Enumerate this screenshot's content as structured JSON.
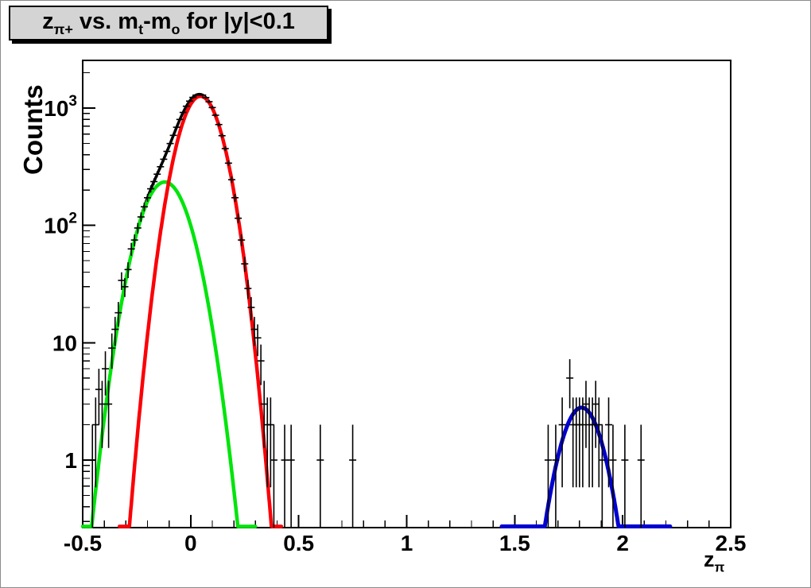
{
  "window": {
    "background": "#ffffff",
    "border_color": "#8c8c8c"
  },
  "title_box": {
    "fill": "#d4d4d4",
    "border_color": "#000000",
    "shadow_color": "#000000",
    "parts": [
      {
        "text": "z"
      },
      {
        "text": "π+",
        "style": "sub"
      },
      {
        "text": " vs. m"
      },
      {
        "text": "t",
        "style": "sub"
      },
      {
        "text": "-m"
      },
      {
        "text": "o",
        "style": "sub"
      },
      {
        "text": " for |y|<0.1"
      }
    ]
  },
  "chart_data": {
    "type": "histogram-with-fits",
    "title_plain": "z_{pi+} vs. m_t-m_o for |y|<0.1",
    "ylabel": "Counts",
    "xlabel_parts": [
      {
        "text": "z"
      },
      {
        "text": "π",
        "style": "sub"
      }
    ],
    "grid": false,
    "legend": null,
    "x_axis": {
      "min": -0.5,
      "max": 2.5,
      "major_ticks": [
        -0.5,
        0,
        0.5,
        1,
        1.5,
        2,
        2.5
      ],
      "major_labels": [
        "-0.5",
        "0",
        "0.5",
        "1",
        "1.5",
        "2",
        "2.5"
      ],
      "minor_step": 0.1
    },
    "y_axis": {
      "scale": "log",
      "min": 0.2657,
      "max": 2546,
      "major_ticks": [
        1,
        10,
        100,
        1000
      ],
      "major_labels": [
        {
          "base": "1",
          "exp": ""
        },
        {
          "base": "10",
          "exp": ""
        },
        {
          "base": "10",
          "exp": "2"
        },
        {
          "base": "10",
          "exp": "3"
        }
      ]
    },
    "fit_curves": [
      {
        "name": "total-fit",
        "color": "#000000",
        "line_width": 3.5,
        "x_range": [
          -0.462,
          0.387
        ],
        "gaussians": [
          {
            "amp": 234,
            "mean": -0.12,
            "sigma": 0.092
          },
          {
            "amp": 1260,
            "mean": 0.045,
            "sigma": 0.08
          }
        ]
      },
      {
        "name": "background-gaussian",
        "color": "#00e40c",
        "line_width": 4.5,
        "x_range": [
          -0.5,
          0.3
        ],
        "gaussians": [
          {
            "amp": 234,
            "mean": -0.12,
            "sigma": 0.092
          }
        ]
      },
      {
        "name": "signal-gaussian",
        "color": "#fb0007",
        "line_width": 4.5,
        "x_range": [
          -0.33,
          0.42
        ],
        "gaussians": [
          {
            "amp": 1260,
            "mean": 0.045,
            "sigma": 0.08
          }
        ]
      },
      {
        "name": "secondary-peak-gaussian",
        "color": "#0000d0",
        "line_width": 5,
        "x_range": [
          1.44,
          2.22
        ],
        "gaussians": [
          {
            "amp": 2.8,
            "mean": 1.81,
            "sigma": 0.079
          }
        ]
      }
    ],
    "data_points": {
      "marker": "cross",
      "color": "#000000",
      "error_mode": "sqrt",
      "main_peak": [
        [
          -0.455,
          1
        ],
        [
          -0.44,
          2
        ],
        [
          -0.425,
          4
        ],
        [
          -0.41,
          3
        ],
        [
          -0.395,
          6
        ],
        [
          -0.38,
          3
        ],
        [
          -0.365,
          9
        ],
        [
          -0.35,
          13
        ],
        [
          -0.335,
          18
        ],
        [
          -0.32,
          34
        ],
        [
          -0.305,
          30
        ],
        [
          -0.29,
          42
        ],
        [
          -0.275,
          63
        ],
        [
          -0.26,
          75
        ],
        [
          -0.245,
          95
        ],
        [
          -0.23,
          118
        ],
        [
          -0.215,
          144
        ],
        [
          -0.2,
          172
        ],
        [
          -0.185,
          205
        ],
        [
          -0.17,
          236
        ],
        [
          -0.155,
          273
        ],
        [
          -0.14,
          316
        ],
        [
          -0.125,
          366
        ],
        [
          -0.11,
          427
        ],
        [
          -0.095,
          498
        ],
        [
          -0.08,
          585
        ],
        [
          -0.065,
          686
        ],
        [
          -0.05,
          799
        ],
        [
          -0.035,
          917
        ],
        [
          -0.02,
          1036
        ],
        [
          -0.005,
          1145
        ],
        [
          0.01,
          1232
        ],
        [
          0.025,
          1289
        ],
        [
          0.04,
          1310
        ],
        [
          0.055,
          1289
        ],
        [
          0.07,
          1228
        ],
        [
          0.085,
          1132
        ],
        [
          0.1,
          1009
        ],
        [
          0.115,
          868
        ],
        [
          0.13,
          723
        ],
        [
          0.145,
          581
        ],
        [
          0.16,
          451
        ],
        [
          0.175,
          339
        ],
        [
          0.19,
          245
        ],
        [
          0.205,
          172
        ],
        [
          0.22,
          115
        ],
        [
          0.235,
          75
        ],
        [
          0.25,
          47
        ],
        [
          0.265,
          29
        ],
        [
          0.28,
          20
        ],
        [
          0.295,
          13
        ],
        [
          0.31,
          11
        ],
        [
          0.325,
          7
        ],
        [
          0.34,
          3
        ],
        [
          0.355,
          2
        ],
        [
          0.37,
          2
        ],
        [
          0.385,
          1
        ]
      ],
      "scattered": [
        [
          0.435,
          1
        ],
        [
          0.465,
          1
        ],
        [
          0.6,
          1
        ],
        [
          0.75,
          1
        ]
      ],
      "secondary_cluster": [
        [
          1.655,
          1
        ],
        [
          1.69,
          1
        ],
        [
          1.72,
          2
        ],
        [
          1.755,
          5
        ],
        [
          1.77,
          2
        ],
        [
          1.785,
          2
        ],
        [
          1.8,
          2
        ],
        [
          1.815,
          2
        ],
        [
          1.83,
          3
        ],
        [
          1.845,
          2
        ],
        [
          1.86,
          2
        ],
        [
          1.875,
          3
        ],
        [
          1.89,
          2
        ],
        [
          1.905,
          1
        ],
        [
          1.935,
          2
        ],
        [
          1.955,
          1
        ],
        [
          2.01,
          1
        ],
        [
          2.085,
          1
        ]
      ]
    }
  }
}
